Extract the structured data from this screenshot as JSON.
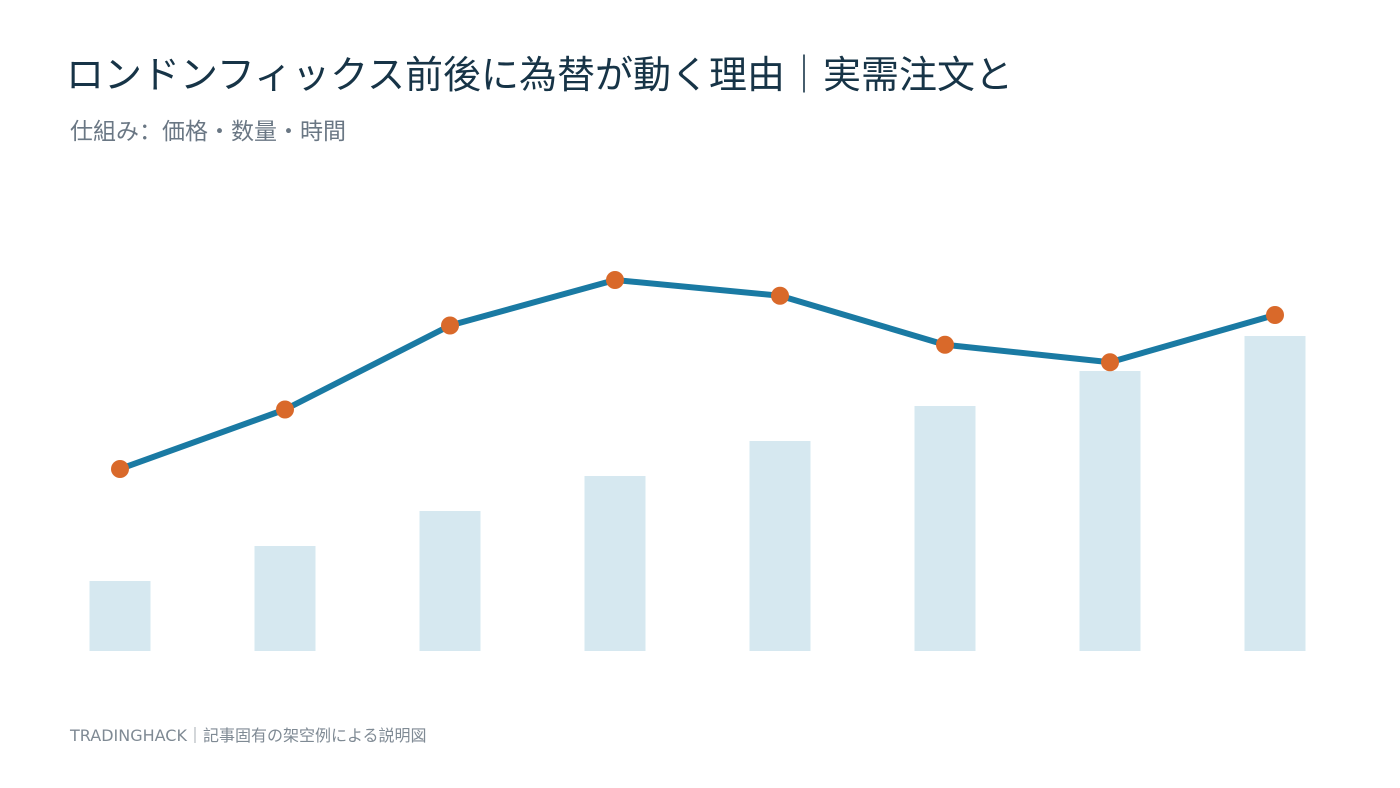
{
  "title": "ロンドンフィックス前後に為替が動く理由｜実需注文と",
  "subtitle": "仕組み：価格・数量・時間",
  "footer": "TRADINGHACK｜記事固有の架空例による説明図",
  "colors": {
    "title": "#173447",
    "bar": "#d6e8f0",
    "line": "#1a7aa3",
    "marker": "#d9692a"
  },
  "chart_data": {
    "type": "bar",
    "categories": [
      "",
      "",
      "",
      "",
      "",
      "",
      "",
      ""
    ],
    "series": [
      {
        "type": "bar",
        "values": [
          2,
          3,
          4,
          5,
          6,
          7,
          8,
          9
        ]
      },
      {
        "type": "line",
        "values": [
          5.2,
          6.9,
          9.3,
          10.6,
          10.15,
          8.75,
          8.25,
          9.6
        ]
      }
    ],
    "ylim": [
      0,
      15
    ],
    "grid": false,
    "legend": "none"
  }
}
